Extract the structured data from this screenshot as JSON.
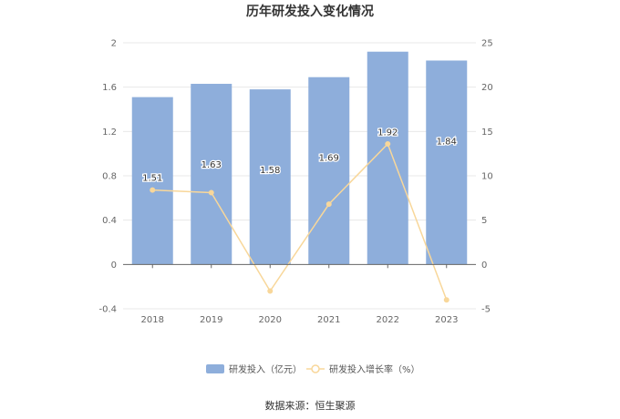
{
  "chart_data": {
    "type": "bar",
    "title": "历年研发投入变化情况",
    "categories": [
      "2018",
      "2019",
      "2020",
      "2021",
      "2022",
      "2023"
    ],
    "series": [
      {
        "name": "研发投入（亿元）",
        "type": "bar",
        "axis": "left",
        "color": "#8eaedb",
        "values": [
          1.51,
          1.63,
          1.58,
          1.69,
          1.92,
          1.84
        ],
        "labels": [
          "1.51",
          "1.63",
          "1.58",
          "1.69",
          "1.92",
          "1.84"
        ]
      },
      {
        "name": "研发投入增长率（%）",
        "type": "line",
        "axis": "right",
        "color": "#f8d79a",
        "values": [
          8.4,
          8.1,
          -3.0,
          6.8,
          13.6,
          -4.0
        ]
      }
    ],
    "y_left": {
      "min": -0.4,
      "max": 2,
      "ticks": [
        "-0.4",
        "0",
        "0.4",
        "0.8",
        "1.2",
        "1.6",
        "2"
      ]
    },
    "y_right": {
      "min": -5,
      "max": 25,
      "ticks": [
        "-5",
        "0",
        "5",
        "10",
        "15",
        "20",
        "25"
      ]
    },
    "grid": true,
    "legend_position": "bottom"
  },
  "footer": {
    "source": "数据来源：恒生聚源"
  }
}
